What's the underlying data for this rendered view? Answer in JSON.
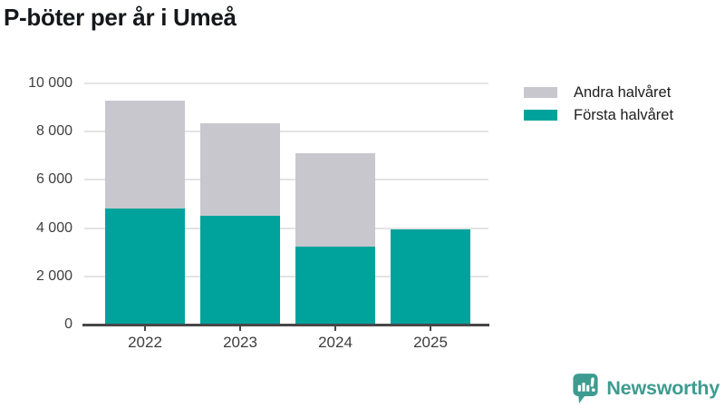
{
  "title": "P-böter per år i Umeå",
  "colors": {
    "first_half": "#00a39c",
    "second_half": "#c8c7ce",
    "grid": "#e4e4e6",
    "axis": "#474747",
    "tick_text": "#404040",
    "title_text": "#15181b",
    "logo": "#3d9b90"
  },
  "chart_data": {
    "type": "bar",
    "stacked": true,
    "title": "P-böter per år i Umeå",
    "xlabel": "",
    "ylabel": "",
    "categories": [
      "2022",
      "2023",
      "2024",
      "2025"
    ],
    "series": [
      {
        "name": "Första halvåret",
        "color_key": "first_half",
        "values": [
          4800,
          4500,
          3250,
          3950
        ]
      },
      {
        "name": "Andra halvåret",
        "color_key": "second_half",
        "values": [
          4500,
          3850,
          3850,
          null
        ]
      }
    ],
    "ylim": [
      0,
      10000
    ],
    "y_ticks": [
      {
        "value": 0,
        "label": "0"
      },
      {
        "value": 2000,
        "label": "2 000"
      },
      {
        "value": 4000,
        "label": "4 000"
      },
      {
        "value": 6000,
        "label": "6 000"
      },
      {
        "value": 8000,
        "label": "8 000"
      },
      {
        "value": 10000,
        "label": "10 000"
      }
    ],
    "grid": true,
    "legend_position": "top-right"
  },
  "legend": {
    "items": [
      {
        "label": "Andra halvåret",
        "color_key": "second_half"
      },
      {
        "label": "Första halvåret",
        "color_key": "first_half"
      }
    ]
  },
  "branding": {
    "name": "Newsworthy",
    "icon": "newsworthy-speech-bubble-chart-icon"
  }
}
